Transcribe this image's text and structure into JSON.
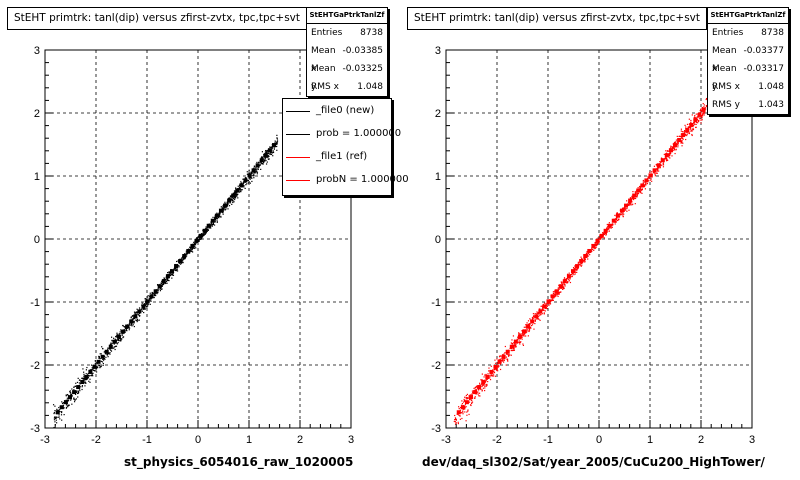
{
  "panels": [
    {
      "title": "StEHT primtrk: tanl(dip) versus zfirst-zvtx, tpc,tpc+svt",
      "xlabel": "st_physics_6054016_raw_1020005",
      "stats": {
        "name": "StEHTGaPtrkTanlZf",
        "rows": [
          {
            "label": "Entries",
            "value": "8738"
          },
          {
            "label": "Mean x",
            "value": "-0.03385"
          },
          {
            "label": "Mean y",
            "value": "-0.03325"
          },
          {
            "label": "RMS x",
            "value": "1.048"
          }
        ]
      },
      "legend": [
        {
          "label": "_file0 (new)",
          "color": "#000000"
        },
        {
          "label": "prob = 1.000000",
          "color": "#000000"
        },
        {
          "label": "_file1 (ref)",
          "color": "#ff0000"
        },
        {
          "label": "probN = 1.000000",
          "color": "#ff0000"
        }
      ]
    },
    {
      "title": "StEHT primtrk: tanl(dip) versus zfirst-zvtx, tpc,tpc+svt",
      "xlabel": "dev/daq_sl302/Sat/year_2005/CuCu200_HighTower/",
      "stats": {
        "name": "StEHTGaPtrkTanlZf",
        "rows": [
          {
            "label": "Entries",
            "value": "8738"
          },
          {
            "label": "Mean x",
            "value": "-0.03377"
          },
          {
            "label": "Mean y",
            "value": "-0.03317"
          },
          {
            "label": "RMS x",
            "value": "1.048"
          },
          {
            "label": "RMS y",
            "value": "1.043"
          }
        ]
      }
    }
  ],
  "chart_data": [
    {
      "type": "scatter",
      "title": "StEHT primtrk: tanl(dip) versus zfirst-zvtx, tpc,tpc+svt",
      "xlabel": "st_physics_6054016_raw_1020005",
      "ylabel": "",
      "xlim": [
        -3,
        3
      ],
      "ylim": [
        -3,
        3
      ],
      "xticks": [
        "-3",
        "-2",
        "-1",
        "0",
        "1",
        "2",
        "3"
      ],
      "yticks": [
        "-3",
        "-2",
        "-1",
        "0",
        "1",
        "2",
        "3"
      ],
      "grid": true,
      "series": [
        {
          "name": "_file0 (new)",
          "color": "#000000",
          "x_range": [
            -2.85,
            1.55
          ],
          "slope": 1.0,
          "intercept": 0.0
        }
      ]
    },
    {
      "type": "scatter",
      "title": "StEHT primtrk: tanl(dip) versus zfirst-zvtx, tpc,tpc+svt",
      "xlabel": "dev/daq_sl302/Sat/year_2005/CuCu200_HighTower/",
      "ylabel": "",
      "xlim": [
        -3,
        3
      ],
      "ylim": [
        -3,
        3
      ],
      "xticks": [
        "-3",
        "-2",
        "-1",
        "0",
        "1",
        "2",
        "3"
      ],
      "yticks": [
        "-3",
        "-2",
        "-1",
        "0",
        "1",
        "2",
        "3"
      ],
      "grid": true,
      "series": [
        {
          "name": "_file1 (ref)",
          "color": "#ff0000",
          "x_range": [
            -2.85,
            2.1
          ],
          "slope": 1.0,
          "intercept": 0.0
        }
      ]
    }
  ]
}
